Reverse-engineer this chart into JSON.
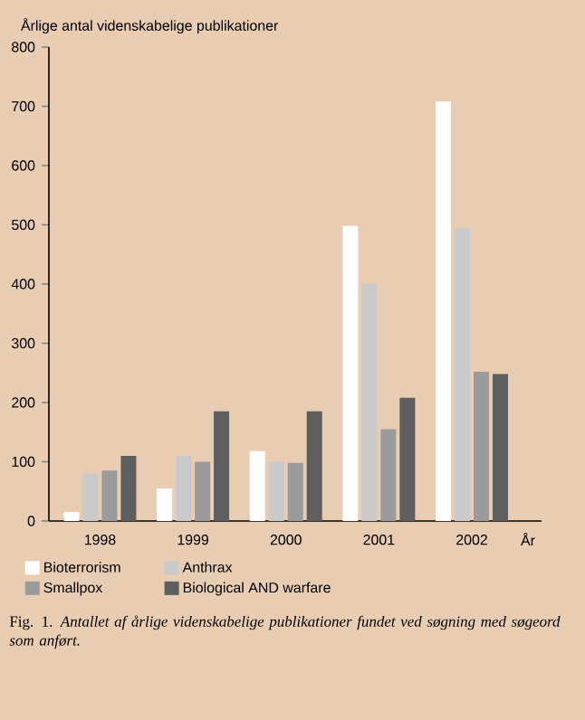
{
  "chart_data": {
    "type": "bar",
    "ylabel": "Årlige antal videnskabelige publikationer",
    "xlabel": "År",
    "categories": [
      "1998",
      "1999",
      "2000",
      "2001",
      "2002"
    ],
    "series": [
      {
        "name": "Bioterrorism",
        "color": "#ffffff",
        "values": [
          15,
          55,
          118,
          498,
          708
        ]
      },
      {
        "name": "Anthrax",
        "color": "#cacaca",
        "values": [
          80,
          110,
          100,
          400,
          495
        ]
      },
      {
        "name": "Smallpox",
        "color": "#9b9b9b",
        "values": [
          85,
          100,
          98,
          155,
          252
        ]
      },
      {
        "name": "Biological AND warfare",
        "color": "#5e5e5e",
        "values": [
          110,
          185,
          185,
          208,
          248
        ]
      }
    ],
    "ylim": [
      0,
      800
    ],
    "yticks": [
      0,
      100,
      200,
      300,
      400,
      500,
      600,
      700,
      800
    ],
    "legend": "bottom",
    "annotations": [
      "Fig. 1. *Antallet af årlige videnskabelige publikationer fundet ved søgning med søgeord som anført.*"
    ]
  }
}
